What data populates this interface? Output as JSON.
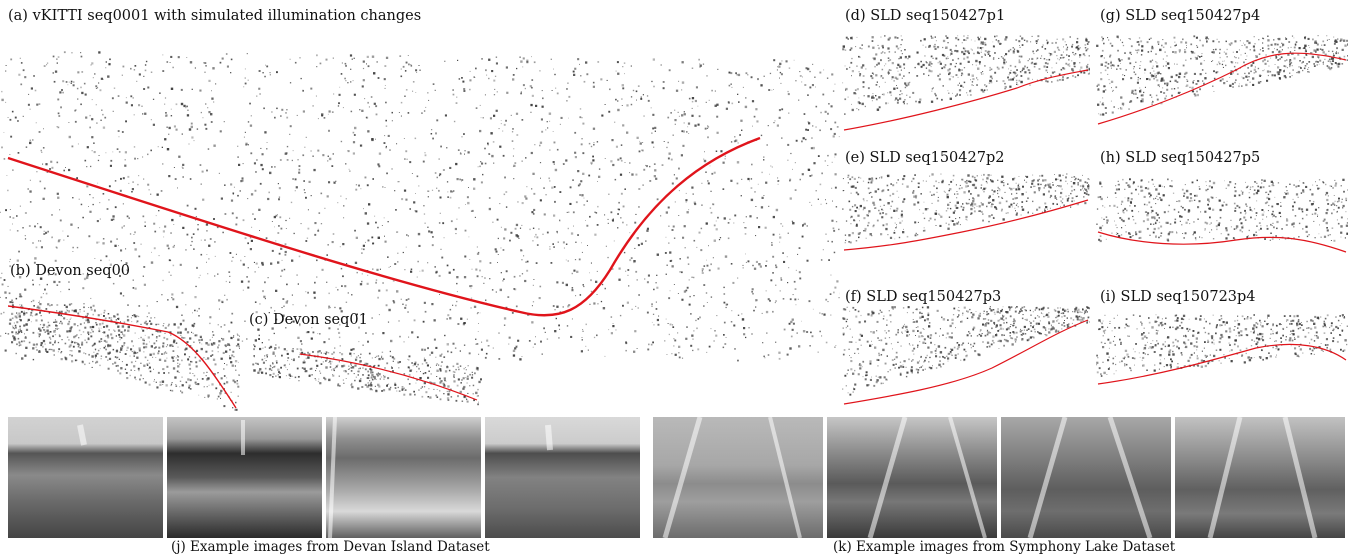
{
  "panels": {
    "a": "(a) vKITTI seq0001 with simulated illumination changes",
    "b": "(b) Devon seq00",
    "c": "(c) Devon seq01",
    "d": "(d) SLD seq150427p1",
    "e": "(e) SLD seq150427p2",
    "f": "(f) SLD seq150427p3",
    "g": "(g) SLD seq150427p4",
    "h": "(h) SLD seq150427p5",
    "i": "(i) SLD seq150723p4"
  },
  "captions": {
    "j": "(j) Example images from Devan Island Dataset",
    "k": "(k) Example images from Symphony Lake Dataset"
  },
  "colors": {
    "trajectory": "#e0141b",
    "points": "#3a3a3a"
  }
}
